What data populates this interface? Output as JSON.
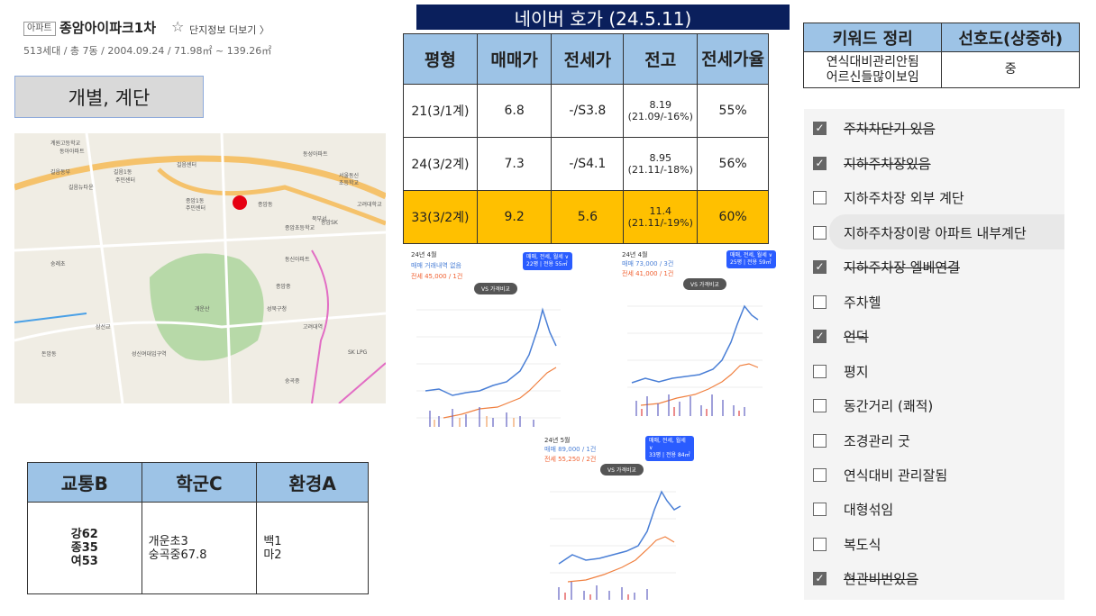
{
  "header": {
    "tag": "아파트",
    "title": "종암아이파크1차",
    "star": "☆",
    "more": "단지정보 더보기 〉",
    "sub": "513세대 / 총 7동 / 2004.09.24 / 71.98㎡ ~ 139.26㎡"
  },
  "access_label": "개별, 계단",
  "map": {
    "labels": [
      "계원고등학교",
      "동아아파트",
      "길음동부",
      "길음1동",
      "길음뉴타운",
      "주민센터",
      "길음센터",
      "동성아파트",
      "서울동신",
      "초등학교",
      "종암1동",
      "주민센터",
      "종암동",
      "북부서",
      "고려대학교",
      "종암초등학교",
      "종암SK",
      "동신아파트",
      "개운산",
      "성북구청",
      "숭례초",
      "돈암동",
      "삼선교",
      "성신여대입구역",
      "고려대역",
      "SK LPG",
      "종암중",
      "숭곡중"
    ]
  },
  "naver": {
    "title": "네이버 호가 (24.5.11)"
  },
  "price_table": {
    "headers": [
      "평형",
      "매매가",
      "전세가",
      "전고",
      "전세가율"
    ],
    "rows": [
      {
        "type": "21(3/1계)",
        "sale": "6.8",
        "jeonse": "-/S3.8",
        "high": "8.19",
        "high_sub": "(21.09/-16%)",
        "ratio": "55%"
      },
      {
        "type": "24(3/2계)",
        "sale": "7.3",
        "jeonse": "-/S4.1",
        "high": "8.95",
        "high_sub": "(21.11/-18%)",
        "ratio": "56%"
      },
      {
        "type": "33(3/2계)",
        "sale": "9.2",
        "jeonse": "5.6",
        "high": "11.4",
        "high_sub": "(21.11/-19%)",
        "ratio": "60%"
      }
    ]
  },
  "keyword_table": {
    "headers": [
      "키워드 정리",
      "선호도(상중하)"
    ],
    "keyword_line1": "연식대비관리안됨",
    "keyword_line2": "어르신들많이보임",
    "preference": "중"
  },
  "checklist": [
    {
      "label": "주차차단기 있음",
      "checked": true,
      "strike": true
    },
    {
      "label": "지하주차장있음",
      "checked": true,
      "strike": true
    },
    {
      "label": "지하주차장 외부 계단",
      "checked": false,
      "strike": false
    },
    {
      "label": "지하주차장이랑 아파트 내부계단",
      "checked": false,
      "strike": false
    },
    {
      "label": "지하주차장 엘베연결",
      "checked": true,
      "strike": true
    },
    {
      "label": "주차헬",
      "checked": false,
      "strike": false
    },
    {
      "label": "언덕",
      "checked": true,
      "strike": true
    },
    {
      "label": "평지",
      "checked": false,
      "strike": false
    },
    {
      "label": "동간거리 (쾌적)",
      "checked": false,
      "strike": false
    },
    {
      "label": "조경관리 굿",
      "checked": false,
      "strike": false
    },
    {
      "label": "연식대비 관리잘됨",
      "checked": false,
      "strike": false
    },
    {
      "label": "대형섞임",
      "checked": false,
      "strike": false
    },
    {
      "label": "복도식",
      "checked": false,
      "strike": false
    },
    {
      "label": "현관비번있음",
      "checked": true,
      "strike": true
    }
  ],
  "rating_table": {
    "headers": [
      "교통B",
      "학군C",
      "환경A"
    ],
    "traffic": [
      "강62",
      "종35",
      "여53"
    ],
    "school": [
      "개운초3",
      "숭곡중67.8"
    ],
    "env": [
      "백1",
      "마2"
    ]
  },
  "charts": [
    {
      "date": "24년 4월",
      "line1": "매매 거래내역 없음",
      "line2": "전세 45,000 / 1건",
      "pill": "매매, 전세, 월세 ∨",
      "pill2": "22평 | 전용 55㎡",
      "vs": "VS 가격비교"
    },
    {
      "date": "24년 4월",
      "line1": "매매 73,000 / 3건",
      "line2": "전세 41,000 / 1건",
      "pill": "매매, 전세, 월세 ∨",
      "pill2": "25평 | 전용 59㎡",
      "vs": "VS 가격비교"
    },
    {
      "date": "24년 5월",
      "line1": "매매 89,000 / 1건",
      "line2": "전세 55,250 / 2건",
      "pill": "매매, 전세, 월세 ∨",
      "pill2": "33평 | 전용 84㎡",
      "vs": "VS 가격비교"
    }
  ],
  "colors": {
    "header_blue": "#9dc3e6",
    "navy": "#0a1f5c",
    "highlight": "#ffc000",
    "sale_line": "#4a7fd6",
    "jeonse_line": "#f08040"
  }
}
